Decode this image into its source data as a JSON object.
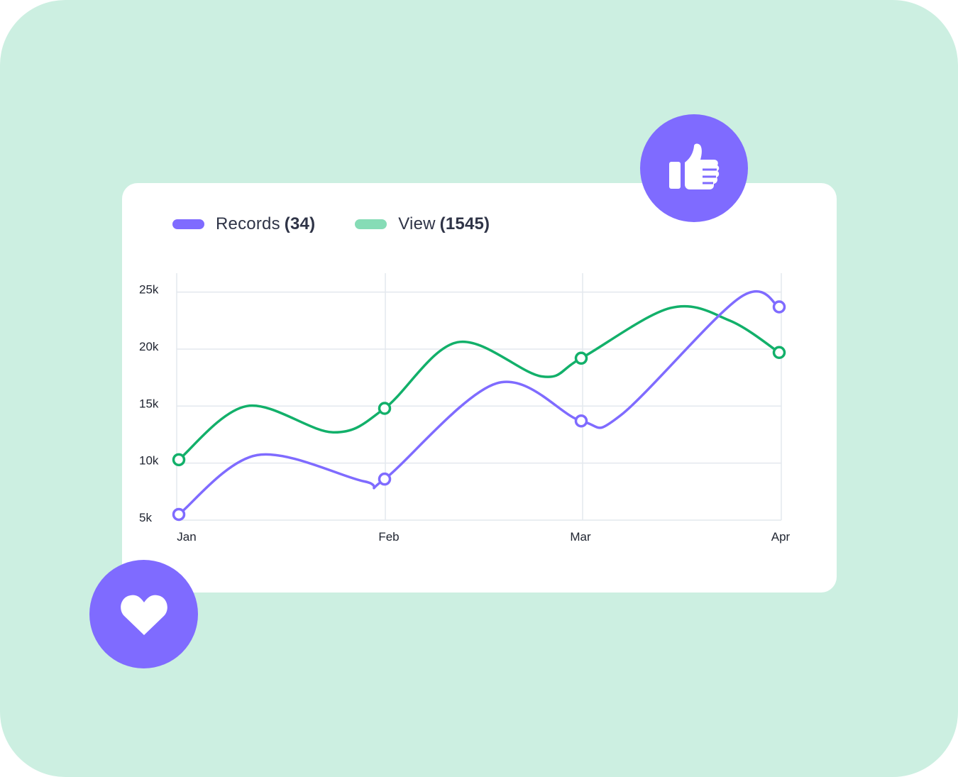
{
  "colors": {
    "background": "#ccefe1",
    "card": "#ffffff",
    "records": "#7f6bff",
    "view_line": "#12b06a",
    "view_legend": "#86dcb6",
    "grid": "#e3e8ee",
    "badge": "#7f6bff"
  },
  "icons": {
    "like": "thumbs-up-icon",
    "heart": "heart-icon"
  },
  "legend": {
    "records_label": "Records",
    "records_count": "(34)",
    "view_label": "View",
    "view_count": "(1545)"
  },
  "chart_data": {
    "type": "line",
    "categories": [
      "Jan",
      "Feb",
      "Mar",
      "Apr"
    ],
    "y_ticks": [
      "5k",
      "10k",
      "15k",
      "20k",
      "25k"
    ],
    "y_tick_values": [
      5000,
      10000,
      15000,
      20000,
      25000
    ],
    "ylim": [
      5000,
      27000
    ],
    "grid": true,
    "legend_position": "top-left",
    "series": [
      {
        "name": "Records",
        "color": "#7f6bff",
        "values": [
          5500,
          8600,
          13700,
          23700
        ],
        "curve": [
          [
            0,
            5500
          ],
          [
            0.38,
            10700
          ],
          [
            0.9,
            8400
          ],
          [
            1,
            8600
          ],
          [
            1.57,
            17000
          ],
          [
            2,
            13700
          ],
          [
            2.2,
            14200
          ],
          [
            2.8,
            24500
          ],
          [
            3,
            23700
          ]
        ]
      },
      {
        "name": "View",
        "color": "#12b06a",
        "values": [
          10300,
          14800,
          19200,
          19700
        ],
        "curve": [
          [
            0,
            10300
          ],
          [
            0.33,
            15000
          ],
          [
            0.75,
            12700
          ],
          [
            1,
            14800
          ],
          [
            1.37,
            20600
          ],
          [
            1.8,
            17600
          ],
          [
            2,
            19200
          ],
          [
            2.45,
            23600
          ],
          [
            2.75,
            22500
          ],
          [
            3,
            19700
          ]
        ]
      }
    ]
  }
}
